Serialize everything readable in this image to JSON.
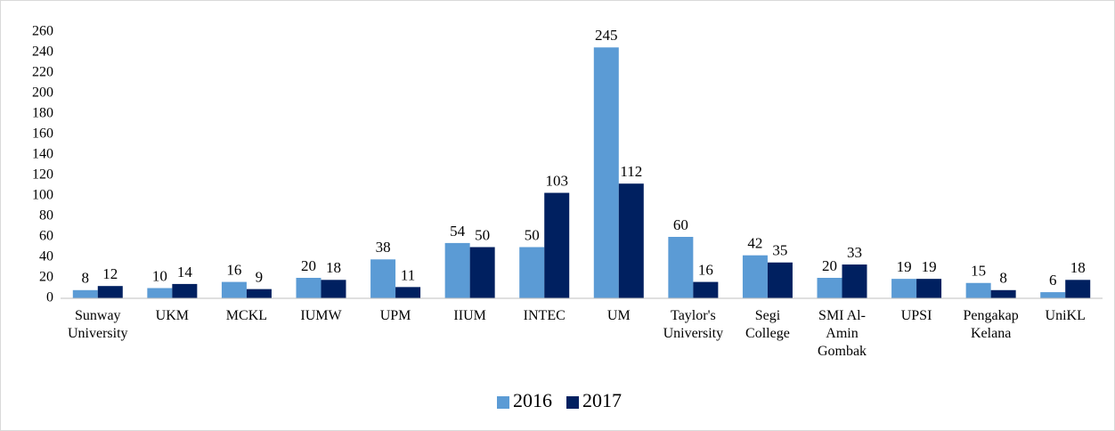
{
  "chart_data": {
    "type": "bar",
    "categories": [
      [
        "Sunway",
        "University"
      ],
      [
        "UKM"
      ],
      [
        "MCKL"
      ],
      [
        "IUMW"
      ],
      [
        "UPM"
      ],
      [
        "IIUM"
      ],
      [
        "INTEC"
      ],
      [
        "UM"
      ],
      [
        "Taylor's",
        "University"
      ],
      [
        "Segi",
        "College"
      ],
      [
        "SMI Al-",
        "Amin",
        "Gombak"
      ],
      [
        "UPSI"
      ],
      [
        "Pengakap",
        "Kelana"
      ],
      [
        "UniKL"
      ]
    ],
    "series": [
      {
        "name": "2016",
        "color": "#5b9bd5",
        "values": [
          8,
          10,
          16,
          20,
          38,
          54,
          50,
          245,
          60,
          42,
          20,
          19,
          15,
          6
        ]
      },
      {
        "name": "2017",
        "color": "#002060",
        "values": [
          12,
          14,
          9,
          18,
          11,
          50,
          103,
          112,
          16,
          35,
          33,
          19,
          8,
          18
        ]
      }
    ],
    "ylim": [
      0,
      260
    ],
    "yticks": [
      0,
      20,
      40,
      60,
      80,
      100,
      120,
      140,
      160,
      180,
      200,
      220,
      240,
      260
    ],
    "legend": "bottom"
  }
}
